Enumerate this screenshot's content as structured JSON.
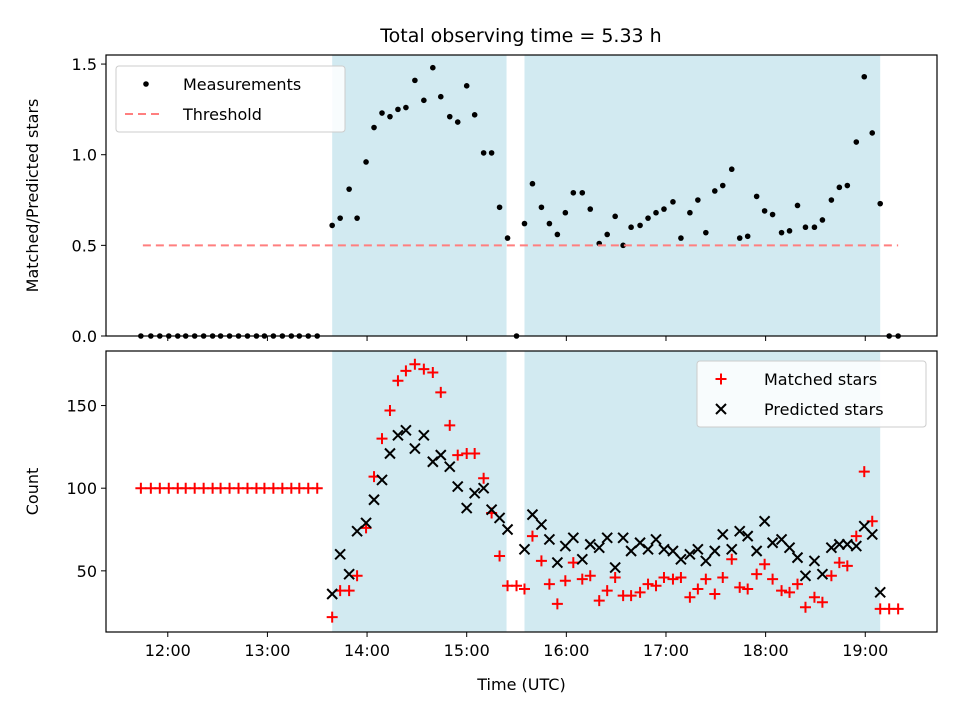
{
  "title": "Total observing time = 5.33 h",
  "colors": {
    "shade": "#add8e6",
    "measurement": "#000000",
    "threshold": "#ff7f7f",
    "matched": "#ff0000",
    "predicted": "#000000"
  },
  "chart_data": [
    {
      "type": "scatter",
      "ylabel": "Matched/Predicted stars",
      "xlabel": "",
      "xlim": [
        11.38,
        19.72
      ],
      "ylim": [
        0,
        1.55
      ],
      "yticks": [
        0.0,
        0.5,
        1.0,
        1.5
      ],
      "ytick_labels": [
        "0.0",
        "0.5",
        "1.0",
        "1.5"
      ],
      "xticks": [
        12,
        13,
        14,
        15,
        16,
        17,
        18,
        19
      ],
      "legend_position": "upper left",
      "grid": false,
      "shaded_spans": [
        [
          13.65,
          15.4
        ],
        [
          15.58,
          19.15
        ]
      ],
      "series": [
        {
          "name": "Measurements",
          "marker": "dot",
          "x": [
            11.73,
            11.83,
            11.92,
            12.01,
            12.1,
            12.18,
            12.27,
            12.36,
            12.45,
            12.53,
            12.62,
            12.71,
            12.8,
            12.89,
            12.97,
            13.06,
            13.15,
            13.24,
            13.32,
            13.41,
            13.5,
            13.65,
            13.73,
            13.82,
            13.9,
            13.99,
            14.07,
            14.15,
            14.23,
            14.31,
            14.39,
            14.48,
            14.57,
            14.66,
            14.74,
            14.83,
            14.91,
            15.0,
            15.08,
            15.17,
            15.25,
            15.33,
            15.41,
            15.5,
            15.58,
            15.66,
            15.75,
            15.83,
            15.91,
            15.99,
            16.07,
            16.16,
            16.24,
            16.33,
            16.41,
            16.49,
            16.57,
            16.65,
            16.74,
            16.82,
            16.9,
            16.98,
            17.07,
            17.15,
            17.24,
            17.32,
            17.4,
            17.49,
            17.57,
            17.66,
            17.74,
            17.82,
            17.91,
            17.99,
            18.07,
            18.16,
            18.24,
            18.32,
            18.4,
            18.49,
            18.57,
            18.66,
            18.74,
            18.82,
            18.91,
            18.99,
            19.07,
            19.15,
            19.24,
            19.33
          ],
          "y": [
            0,
            0,
            0,
            0,
            0,
            0,
            0,
            0,
            0,
            0,
            0,
            0,
            0,
            0,
            0,
            0,
            0,
            0,
            0,
            0,
            0,
            0.61,
            0.65,
            0.81,
            0.65,
            0.96,
            1.15,
            1.23,
            1.21,
            1.25,
            1.26,
            1.41,
            1.3,
            1.48,
            1.32,
            1.21,
            1.18,
            1.38,
            1.22,
            1.01,
            1.01,
            0.71,
            0.54,
            0,
            0.62,
            0.84,
            0.71,
            0.62,
            0.56,
            0.68,
            0.79,
            0.79,
            0.7,
            0.51,
            0.56,
            0.66,
            0.5,
            0.6,
            0.61,
            0.65,
            0.68,
            0.7,
            0.74,
            0.54,
            0.68,
            0.75,
            0.57,
            0.8,
            0.83,
            0.92,
            0.54,
            0.55,
            0.77,
            0.69,
            0.67,
            0.57,
            0.58,
            0.72,
            0.6,
            0.6,
            0.64,
            0.75,
            0.82,
            0.83,
            1.07,
            1.43,
            1.12,
            0.73,
            0,
            0
          ]
        },
        {
          "name": "Threshold",
          "style": "dashed",
          "x": [
            11.75,
            19.33
          ],
          "y": [
            0.5,
            0.5
          ]
        }
      ]
    },
    {
      "type": "scatter",
      "ylabel": "Count",
      "xlabel": "Time (UTC)",
      "xlim": [
        11.38,
        19.72
      ],
      "ylim": [
        13,
        183
      ],
      "yticks": [
        50,
        100,
        150
      ],
      "ytick_labels": [
        "50",
        "100",
        "150"
      ],
      "xticks": [
        12,
        13,
        14,
        15,
        16,
        17,
        18,
        19
      ],
      "xtick_labels": [
        "12:00",
        "13:00",
        "14:00",
        "15:00",
        "16:00",
        "17:00",
        "18:00",
        "19:00"
      ],
      "legend_position": "upper right",
      "grid": false,
      "shaded_spans": [
        [
          13.65,
          15.4
        ],
        [
          15.58,
          19.15
        ]
      ],
      "series": [
        {
          "name": "Matched stars",
          "marker": "plus",
          "x": [
            11.73,
            11.83,
            11.92,
            12.01,
            12.1,
            12.18,
            12.27,
            12.36,
            12.45,
            12.53,
            12.62,
            12.71,
            12.8,
            12.89,
            12.97,
            13.06,
            13.15,
            13.24,
            13.32,
            13.41,
            13.5,
            13.65,
            13.73,
            13.82,
            13.9,
            13.99,
            14.07,
            14.15,
            14.23,
            14.31,
            14.39,
            14.48,
            14.57,
            14.66,
            14.74,
            14.83,
            14.91,
            15.0,
            15.08,
            15.17,
            15.25,
            15.33,
            15.41,
            15.5,
            15.58,
            15.66,
            15.75,
            15.83,
            15.91,
            15.99,
            16.07,
            16.16,
            16.24,
            16.33,
            16.41,
            16.49,
            16.57,
            16.65,
            16.74,
            16.82,
            16.9,
            16.98,
            17.07,
            17.15,
            17.24,
            17.32,
            17.4,
            17.49,
            17.57,
            17.66,
            17.74,
            17.82,
            17.91,
            17.99,
            18.07,
            18.16,
            18.24,
            18.32,
            18.4,
            18.49,
            18.57,
            18.66,
            18.74,
            18.82,
            18.91,
            18.99,
            19.07,
            19.15,
            19.24,
            19.33
          ],
          "y": [
            100,
            100,
            100,
            100,
            100,
            100,
            100,
            100,
            100,
            100,
            100,
            100,
            100,
            100,
            100,
            100,
            100,
            100,
            100,
            100,
            100,
            22,
            38,
            38,
            47,
            76,
            107,
            130,
            147,
            165,
            171,
            175,
            172,
            170,
            158,
            138,
            120,
            121,
            121,
            106,
            85,
            59,
            41,
            41,
            39,
            71,
            56,
            42,
            30,
            44,
            55,
            45,
            47,
            32,
            38,
            46,
            35,
            35,
            37,
            42,
            41,
            46,
            45,
            46,
            34,
            39,
            45,
            36,
            46,
            57,
            40,
            39,
            48,
            54,
            45,
            38,
            37,
            42,
            28,
            34,
            31,
            47,
            55,
            53,
            71,
            110,
            80,
            27,
            27,
            27
          ]
        },
        {
          "name": "Predicted stars",
          "marker": "x",
          "x": [
            13.65,
            13.73,
            13.82,
            13.9,
            13.99,
            14.07,
            14.15,
            14.23,
            14.31,
            14.39,
            14.48,
            14.57,
            14.66,
            14.74,
            14.83,
            14.91,
            15.0,
            15.08,
            15.17,
            15.25,
            15.33,
            15.41,
            15.58,
            15.66,
            15.75,
            15.83,
            15.91,
            15.99,
            16.07,
            16.16,
            16.24,
            16.33,
            16.41,
            16.49,
            16.57,
            16.65,
            16.74,
            16.82,
            16.9,
            16.98,
            17.07,
            17.15,
            17.24,
            17.32,
            17.4,
            17.49,
            17.57,
            17.66,
            17.74,
            17.82,
            17.91,
            17.99,
            18.07,
            18.16,
            18.24,
            18.32,
            18.4,
            18.49,
            18.57,
            18.66,
            18.74,
            18.82,
            18.91,
            18.99,
            19.07,
            19.15
          ],
          "y": [
            36,
            60,
            48,
            74,
            79,
            93,
            105,
            121,
            132,
            135,
            124,
            132,
            116,
            120,
            113,
            101,
            88,
            97,
            100,
            87,
            82,
            75,
            63,
            84,
            78,
            69,
            55,
            65,
            70,
            57,
            66,
            64,
            70,
            52,
            70,
            62,
            67,
            63,
            69,
            63,
            62,
            57,
            60,
            63,
            56,
            62,
            72,
            63,
            74,
            71,
            62,
            80,
            67,
            69,
            64,
            58,
            47,
            56,
            48,
            64,
            66,
            66,
            65,
            77,
            72,
            37
          ]
        }
      ]
    }
  ]
}
